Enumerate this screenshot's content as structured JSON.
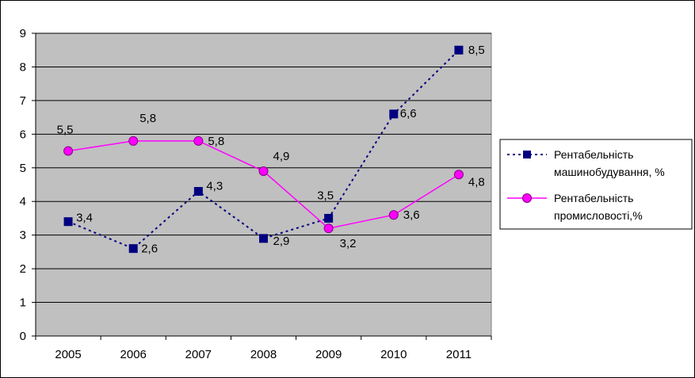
{
  "chart_data": {
    "type": "line",
    "categories": [
      "2005",
      "2006",
      "2007",
      "2008",
      "2009",
      "2010",
      "2011"
    ],
    "ylim": [
      0,
      9
    ],
    "yticks": [
      "0",
      "1",
      "2",
      "3",
      "4",
      "5",
      "6",
      "7",
      "8",
      "9"
    ],
    "grid": true,
    "legend_position": "right",
    "plot_background": "#c0c0c0",
    "series": [
      {
        "name": "Рентабельність машинобудування, %",
        "name_lines": [
          "Рентабельність",
          "машинобудування, %"
        ],
        "values": [
          3.4,
          2.6,
          4.3,
          2.9,
          3.5,
          6.6,
          8.5
        ],
        "labels": [
          "3,4",
          "2,6",
          "4,3",
          "2,9",
          "3,5",
          "6,6",
          "8,5"
        ],
        "color": "#000080",
        "line_style": "dotted",
        "marker": "square",
        "marker_color": "#000080"
      },
      {
        "name": "Рентабельність промисловості,%",
        "name_lines": [
          "Рентабельність",
          "промисловості,%"
        ],
        "values": [
          5.5,
          5.8,
          5.8,
          4.9,
          3.2,
          3.6,
          4.8
        ],
        "labels": [
          "5,5",
          "5,8",
          "5,8",
          "4,9",
          "3,2",
          "3,6",
          "4,8"
        ],
        "color": "#ff00ff",
        "line_style": "solid",
        "marker": "circle",
        "marker_color": "#ff00ff"
      }
    ]
  }
}
